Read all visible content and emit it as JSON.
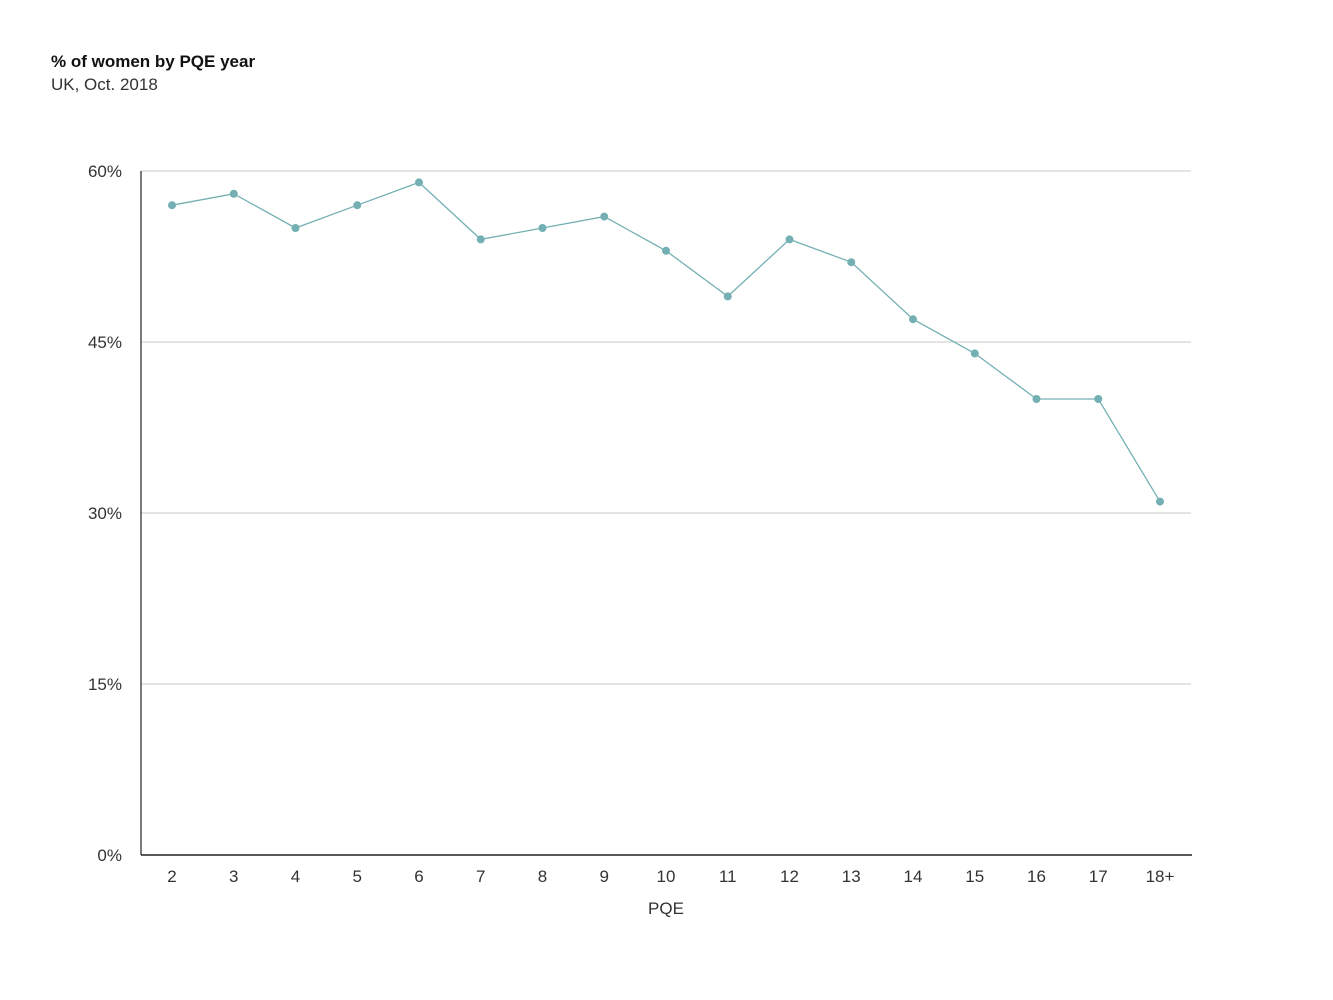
{
  "chart_data": {
    "type": "line",
    "title": "% of women by PQE year",
    "subtitle": "UK, Oct. 2018",
    "xlabel": "PQE",
    "ylabel": "",
    "categories": [
      "2",
      "3",
      "4",
      "5",
      "6",
      "7",
      "8",
      "9",
      "10",
      "11",
      "12",
      "13",
      "14",
      "15",
      "16",
      "17",
      "18+"
    ],
    "series": [
      {
        "values": [
          57,
          58,
          55,
          57,
          59,
          54,
          55,
          56,
          53,
          49,
          54,
          52,
          47,
          44,
          40,
          40,
          31
        ]
      }
    ],
    "ylim": [
      0,
      60
    ],
    "yticks": [
      0,
      15,
      30,
      45,
      60
    ],
    "ytick_labels": [
      "0%",
      "15%",
      "30%",
      "45%",
      "60%"
    ],
    "grid": true,
    "legend": "none",
    "colors": {
      "line": "#74b0b3",
      "grid": "#c8c8c8",
      "axis": "#222222"
    }
  }
}
